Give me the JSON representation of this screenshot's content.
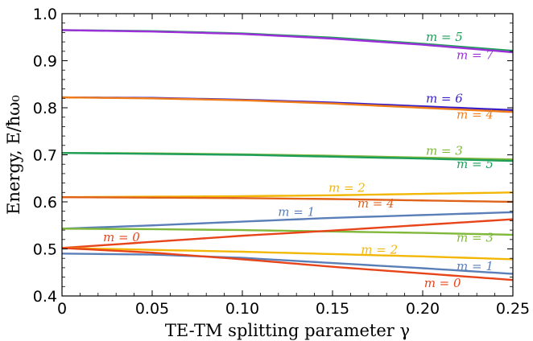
{
  "chart_data": {
    "type": "line",
    "xlabel": "TE-TM splitting parameter γ",
    "ylabel": "Energy, E/ħω₀",
    "xlim": [
      0,
      0.25
    ],
    "ylim": [
      0.4,
      1.0
    ],
    "xticks": [
      "0",
      "0.05",
      "0.10",
      "0.15",
      "0.20",
      "0.25"
    ],
    "yticks": [
      "0.4",
      "0.5",
      "0.6",
      "0.7",
      "0.8",
      "0.9",
      "1.0"
    ],
    "grid": false,
    "series": [
      {
        "name": "m = 5",
        "color": "#1f9e5a",
        "x": [
          0,
          0.05,
          0.1,
          0.15,
          0.2,
          0.25
        ],
        "y": [
          0.965,
          0.963,
          0.958,
          0.949,
          0.936,
          0.921
        ]
      },
      {
        "name": "m = 7",
        "color": "#9b30d9",
        "x": [
          0,
          0.05,
          0.1,
          0.15,
          0.2,
          0.25
        ],
        "y": [
          0.965,
          0.962,
          0.957,
          0.947,
          0.934,
          0.918
        ]
      },
      {
        "name": "m = 6",
        "color": "#3a1fc8",
        "x": [
          0,
          0.05,
          0.1,
          0.15,
          0.2,
          0.25
        ],
        "y": [
          0.822,
          0.821,
          0.817,
          0.811,
          0.803,
          0.795
        ]
      },
      {
        "name": "m = 4",
        "color": "#f07d1a",
        "x": [
          0,
          0.05,
          0.1,
          0.15,
          0.2,
          0.25
        ],
        "y": [
          0.822,
          0.82,
          0.816,
          0.809,
          0.8,
          0.791
        ]
      },
      {
        "name": "m = 3",
        "color": "#7fb83a",
        "x": [
          0,
          0.05,
          0.1,
          0.15,
          0.2,
          0.25
        ],
        "y": [
          0.704,
          0.703,
          0.701,
          0.698,
          0.694,
          0.69
        ]
      },
      {
        "name": "m = 5",
        "color": "#1f9e5a",
        "x": [
          0,
          0.05,
          0.1,
          0.15,
          0.2,
          0.25
        ],
        "y": [
          0.704,
          0.702,
          0.7,
          0.696,
          0.692,
          0.687
        ]
      },
      {
        "name": "m = 2",
        "color": "#f2b705",
        "x": [
          0,
          0.05,
          0.1,
          0.15,
          0.2,
          0.25
        ],
        "y": [
          0.61,
          0.611,
          0.612,
          0.614,
          0.617,
          0.62
        ]
      },
      {
        "name": "m = 4",
        "color": "#e0621a",
        "x": [
          0,
          0.05,
          0.1,
          0.15,
          0.2,
          0.25
        ],
        "y": [
          0.61,
          0.609,
          0.608,
          0.606,
          0.603,
          0.6
        ]
      },
      {
        "name": "m = 1",
        "color": "#5a7fb8",
        "x": [
          0,
          0.05,
          0.1,
          0.15,
          0.2,
          0.25
        ],
        "y": [
          0.543,
          0.55,
          0.558,
          0.566,
          0.572,
          0.578
        ]
      },
      {
        "name": "m = 3",
        "color": "#7fb83a",
        "x": [
          0,
          0.05,
          0.1,
          0.15,
          0.2,
          0.25
        ],
        "y": [
          0.543,
          0.542,
          0.54,
          0.537,
          0.534,
          0.53
        ]
      },
      {
        "name": "m = 0",
        "color": "#e8441a",
        "x": [
          0,
          0.05,
          0.1,
          0.15,
          0.2,
          0.25
        ],
        "y": [
          0.502,
          0.515,
          0.528,
          0.539,
          0.551,
          0.563
        ]
      },
      {
        "name": "m = 2",
        "color": "#f2b705",
        "x": [
          0,
          0.05,
          0.1,
          0.15,
          0.2,
          0.25
        ],
        "y": [
          0.502,
          0.498,
          0.494,
          0.489,
          0.484,
          0.478
        ]
      },
      {
        "name": "m = 1",
        "color": "#5a7fb8",
        "x": [
          0,
          0.05,
          0.1,
          0.15,
          0.2,
          0.25
        ],
        "y": [
          0.49,
          0.488,
          0.481,
          0.47,
          0.459,
          0.447
        ]
      },
      {
        "name": "m = 0",
        "color": "#e8441a",
        "x": [
          0,
          0.05,
          0.1,
          0.15,
          0.2,
          0.25
        ],
        "y": [
          0.502,
          0.492,
          0.478,
          0.462,
          0.448,
          0.434
        ]
      }
    ],
    "annotations": [
      {
        "text": "m = 5",
        "x": 0.212,
        "y": 0.942,
        "color": "#1f9e5a"
      },
      {
        "text": "m = 7",
        "x": 0.229,
        "y": 0.903,
        "color": "#9b30d9"
      },
      {
        "text": "m = 6",
        "x": 0.212,
        "y": 0.811,
        "color": "#3a1fc8"
      },
      {
        "text": "m = 4",
        "x": 0.229,
        "y": 0.777,
        "color": "#f07d1a"
      },
      {
        "text": "m = 3",
        "x": 0.212,
        "y": 0.7,
        "color": "#7fb83a"
      },
      {
        "text": "m = 5",
        "x": 0.229,
        "y": 0.672,
        "color": "#1f9e5a"
      },
      {
        "text": "m = 2",
        "x": 0.158,
        "y": 0.621,
        "color": "#f2b705"
      },
      {
        "text": "m = 4",
        "x": 0.174,
        "y": 0.588,
        "color": "#e0621a"
      },
      {
        "text": "m = 1",
        "x": 0.13,
        "y": 0.57,
        "color": "#5a7fb8"
      },
      {
        "text": "m = 3",
        "x": 0.229,
        "y": 0.515,
        "color": "#7fb83a"
      },
      {
        "text": "m = 0",
        "x": 0.033,
        "y": 0.516,
        "color": "#e8441a"
      },
      {
        "text": "m = 2",
        "x": 0.176,
        "y": 0.49,
        "color": "#f2b705"
      },
      {
        "text": "m = 1",
        "x": 0.229,
        "y": 0.455,
        "color": "#5a7fb8"
      },
      {
        "text": "m = 0",
        "x": 0.211,
        "y": 0.419,
        "color": "#e8441a"
      }
    ]
  }
}
